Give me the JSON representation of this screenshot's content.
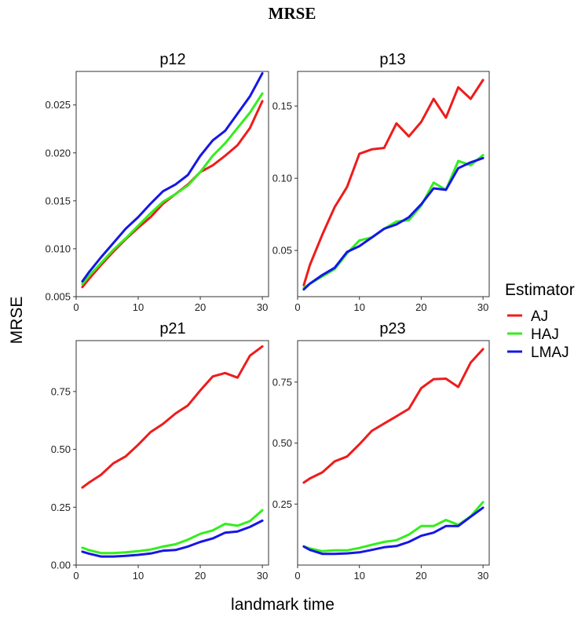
{
  "figure": {
    "title": "MRSE",
    "xlabel": "landmark time",
    "ylabel": "MRSE"
  },
  "legend": {
    "title": "Estimator",
    "position": "right",
    "items": [
      {
        "label": "AJ",
        "color": "#ee1c1c"
      },
      {
        "label": "HAJ",
        "color": "#33ee1c"
      },
      {
        "label": "LMAJ",
        "color": "#1616e6"
      }
    ]
  },
  "chart_data": [
    {
      "type": "line",
      "title": "p12",
      "x": [
        1,
        2,
        4,
        6,
        8,
        10,
        12,
        14,
        16,
        18,
        20,
        22,
        24,
        26,
        28,
        30
      ],
      "xlim": [
        0,
        31
      ],
      "xticks": [
        "0",
        "10",
        "20",
        "30"
      ],
      "ylim": [
        0.005,
        0.0285
      ],
      "yticks": [
        "0.005",
        "0.010",
        "0.015",
        "0.020",
        "0.025"
      ],
      "series": [
        {
          "name": "AJ",
          "values": [
            0.006,
            0.0068,
            0.0083,
            0.0097,
            0.011,
            0.0122,
            0.0133,
            0.0147,
            0.0157,
            0.0167,
            0.018,
            0.0187,
            0.0197,
            0.0208,
            0.0226,
            0.0254
          ]
        },
        {
          "name": "HAJ",
          "values": [
            0.0063,
            0.0071,
            0.0085,
            0.0099,
            0.0111,
            0.0124,
            0.0137,
            0.0149,
            0.0157,
            0.0166,
            0.018,
            0.0197,
            0.021,
            0.0226,
            0.0242,
            0.0262
          ]
        },
        {
          "name": "LMAJ",
          "values": [
            0.0066,
            0.0075,
            0.0091,
            0.0106,
            0.0121,
            0.0133,
            0.0147,
            0.016,
            0.0167,
            0.0177,
            0.0197,
            0.0213,
            0.0223,
            0.0241,
            0.0259,
            0.0283
          ]
        }
      ]
    },
    {
      "type": "line",
      "title": "p13",
      "x": [
        1,
        2,
        4,
        6,
        8,
        10,
        12,
        14,
        16,
        18,
        20,
        22,
        24,
        26,
        28,
        30
      ],
      "xlim": [
        0,
        31
      ],
      "xticks": [
        "0",
        "10",
        "20",
        "30"
      ],
      "ylim": [
        0.018,
        0.174
      ],
      "yticks": [
        "0.05",
        "0.10",
        "0.15"
      ],
      "series": [
        {
          "name": "AJ",
          "values": [
            0.026,
            0.04,
            0.061,
            0.08,
            0.094,
            0.117,
            0.12,
            0.121,
            0.138,
            0.129,
            0.139,
            0.155,
            0.142,
            0.163,
            0.155,
            0.168
          ]
        },
        {
          "name": "HAJ",
          "values": [
            0.024,
            0.027,
            0.032,
            0.037,
            0.048,
            0.057,
            0.059,
            0.065,
            0.07,
            0.071,
            0.081,
            0.097,
            0.092,
            0.112,
            0.109,
            0.116
          ]
        },
        {
          "name": "LMAJ",
          "values": [
            0.023,
            0.027,
            0.033,
            0.038,
            0.049,
            0.053,
            0.059,
            0.065,
            0.068,
            0.073,
            0.082,
            0.093,
            0.092,
            0.107,
            0.111,
            0.114
          ]
        }
      ]
    },
    {
      "type": "line",
      "title": "p21",
      "x": [
        1,
        2,
        4,
        6,
        8,
        10,
        12,
        14,
        16,
        18,
        20,
        22,
        24,
        26,
        28,
        30
      ],
      "xlim": [
        0,
        31
      ],
      "xticks": [
        "0",
        "10",
        "20",
        "30"
      ],
      "ylim": [
        0,
        0.97
      ],
      "yticks": [
        "0.00",
        "0.25",
        "0.50",
        "0.75"
      ],
      "series": [
        {
          "name": "AJ",
          "values": [
            0.335,
            0.355,
            0.39,
            0.44,
            0.47,
            0.52,
            0.575,
            0.61,
            0.655,
            0.69,
            0.755,
            0.815,
            0.83,
            0.81,
            0.905,
            0.945
          ]
        },
        {
          "name": "HAJ",
          "values": [
            0.075,
            0.065,
            0.052,
            0.052,
            0.055,
            0.06,
            0.067,
            0.08,
            0.09,
            0.11,
            0.135,
            0.15,
            0.178,
            0.17,
            0.19,
            0.237
          ]
        },
        {
          "name": "LMAJ",
          "values": [
            0.058,
            0.05,
            0.037,
            0.037,
            0.04,
            0.044,
            0.05,
            0.062,
            0.065,
            0.08,
            0.1,
            0.115,
            0.14,
            0.145,
            0.165,
            0.192
          ]
        }
      ]
    },
    {
      "type": "line",
      "title": "p23",
      "x": [
        1,
        2,
        4,
        6,
        8,
        10,
        12,
        14,
        16,
        18,
        20,
        22,
        24,
        26,
        28,
        30
      ],
      "xlim": [
        0,
        31
      ],
      "xticks": [
        "0",
        "10",
        "20",
        "30"
      ],
      "ylim": [
        0,
        0.92
      ],
      "yticks": [
        "0.25",
        "0.50",
        "0.75"
      ],
      "series": [
        {
          "name": "AJ",
          "values": [
            0.338,
            0.355,
            0.38,
            0.425,
            0.445,
            0.495,
            0.55,
            0.58,
            0.61,
            0.64,
            0.725,
            0.762,
            0.764,
            0.73,
            0.83,
            0.885
          ]
        },
        {
          "name": "HAJ",
          "values": [
            0.077,
            0.068,
            0.057,
            0.06,
            0.06,
            0.07,
            0.083,
            0.095,
            0.102,
            0.125,
            0.16,
            0.16,
            0.185,
            0.165,
            0.2,
            0.258
          ]
        },
        {
          "name": "LMAJ",
          "values": [
            0.076,
            0.062,
            0.046,
            0.046,
            0.048,
            0.052,
            0.062,
            0.073,
            0.078,
            0.095,
            0.12,
            0.133,
            0.16,
            0.16,
            0.198,
            0.235
          ]
        }
      ]
    }
  ]
}
